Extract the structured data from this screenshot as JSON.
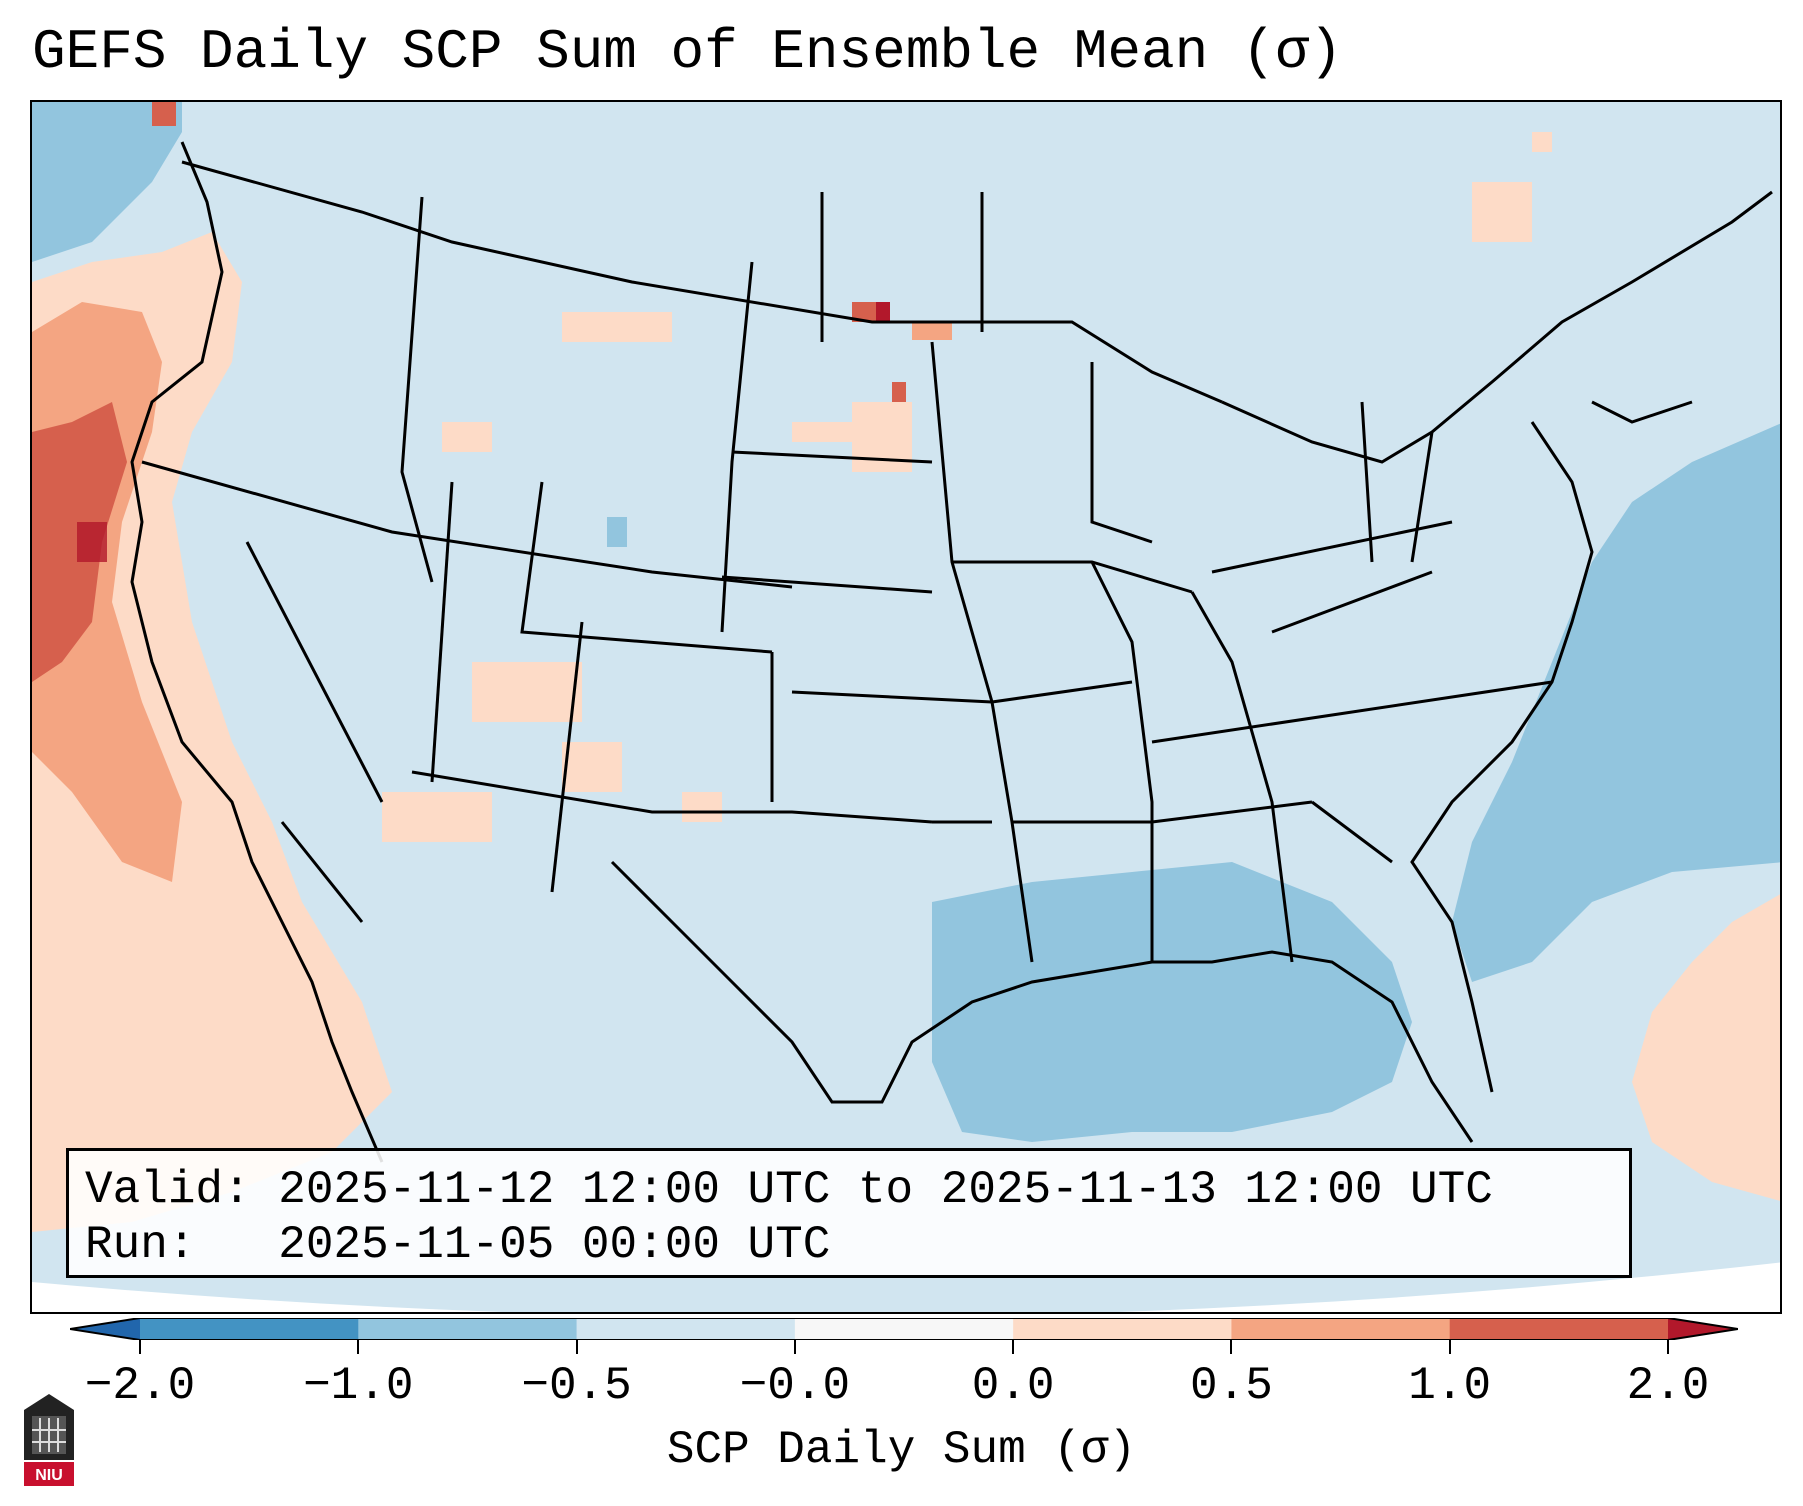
{
  "title": "GEFS Daily SCP Sum of Ensemble Mean (σ)",
  "info": {
    "valid_label": "Valid:",
    "valid_value": "2025-11-12 12:00 UTC to 2025-11-13 12:00 UTC",
    "run_label": "Run:",
    "run_value": "2025-11-05 00:00 UTC"
  },
  "colorbar": {
    "label": "SCP Daily Sum (σ)",
    "ticks": [
      "−2.0",
      "−1.0",
      "−0.5",
      "−0.0",
      "0.0",
      "0.5",
      "1.0",
      "2.0"
    ],
    "bins": [
      {
        "from": "−2.0",
        "to": "−1.0",
        "color": "#4393c3"
      },
      {
        "from": "−1.0",
        "to": "−0.5",
        "color": "#92c5de"
      },
      {
        "from": "−0.5",
        "to": "−0.0",
        "color": "#d1e5f0"
      },
      {
        "from": "−0.0",
        "to": "0.0",
        "color": "#f7f7f7"
      },
      {
        "from": "0.0",
        "to": "0.5",
        "color": "#fddbc7"
      },
      {
        "from": "0.5",
        "to": "1.0",
        "color": "#f4a582"
      },
      {
        "from": "1.0",
        "to": "2.0",
        "color": "#d6604d"
      }
    ],
    "under_color": "#2166ac",
    "over_color": "#b2182b"
  },
  "logo": {
    "text": "NIU"
  }
}
